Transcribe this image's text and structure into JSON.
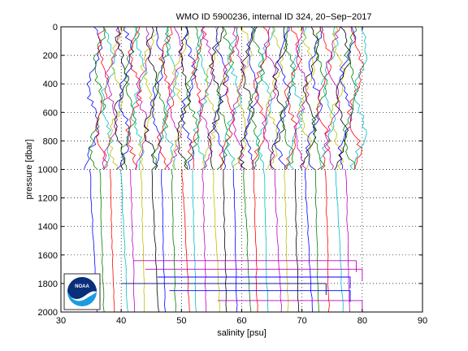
{
  "chart_data": {
    "type": "line",
    "title": "WMO ID 5900236, internal ID 324, 20−Sep−2017",
    "xlabel": "salinity [psu]",
    "ylabel": "pressure [dbar]",
    "xlim": [
      30,
      90
    ],
    "ylim": [
      0,
      2000
    ],
    "y_reversed": true,
    "grid": true,
    "grid_style": "dotted",
    "legend": "none",
    "xticks": [
      30,
      40,
      50,
      60,
      70,
      80,
      90
    ],
    "yticks": [
      0,
      200,
      400,
      600,
      800,
      1000,
      1200,
      1400,
      1600,
      1800,
      2000
    ],
    "series_colors": [
      "#0000ff",
      "#008000",
      "#ff0000",
      "#00bfbf",
      "#bf00bf",
      "#bfbf00",
      "#000000"
    ],
    "profile_count": 60,
    "profile_start_salinity": 35,
    "profile_offset_step": 0.75,
    "deep_profile_count": 26,
    "deep_start_salinity": 34.8,
    "deep_offset_step": 1.7,
    "anomaly_traces": [
      {
        "pressure": 1640,
        "x_from": 42,
        "x_to": 79,
        "color": "#bf00bf"
      },
      {
        "pressure": 1700,
        "x_from": 44,
        "x_to": 80,
        "color": "#bf00bf"
      },
      {
        "pressure": 1755,
        "x_from": 46,
        "x_to": 78,
        "color": "#0000ff"
      },
      {
        "pressure": 1800,
        "x_from": 40,
        "x_to": 74,
        "color": "#000080"
      },
      {
        "pressure": 1850,
        "x_from": 48,
        "x_to": 78,
        "color": "#0000ff"
      },
      {
        "pressure": 1920,
        "x_from": 56,
        "x_to": 80,
        "color": "#bf00bf"
      }
    ]
  },
  "logo": {
    "text": "NOAA",
    "colors": {
      "upper": "#0a2e7a",
      "lower": "#1e9be0",
      "band": "#ffffff"
    }
  }
}
